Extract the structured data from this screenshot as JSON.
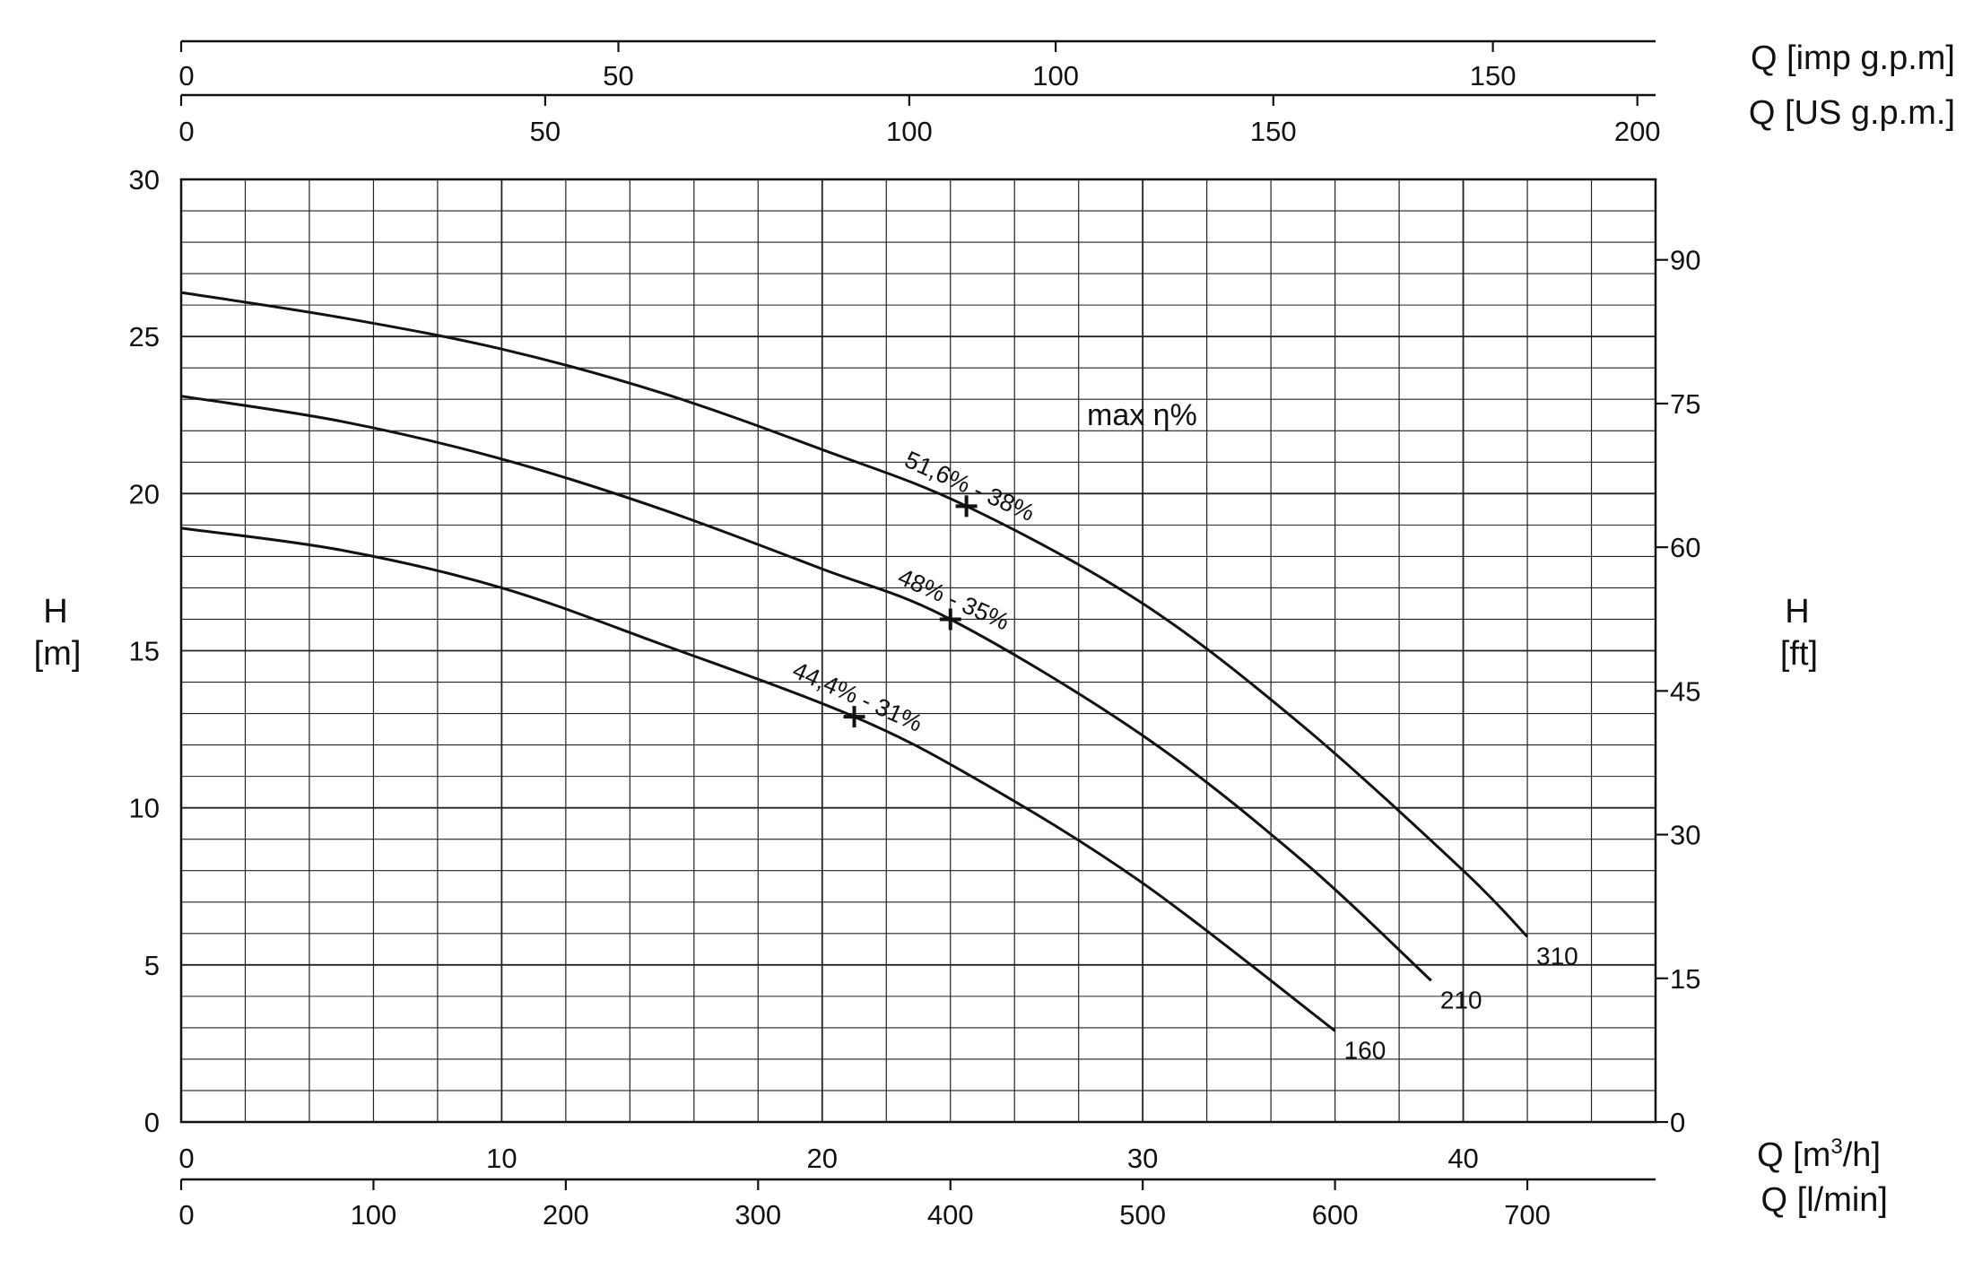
{
  "chart_data": {
    "type": "line",
    "title": "",
    "grid": true,
    "x_primary": {
      "label": "Q [m³/h]",
      "label_main": "Q [m",
      "label_sup": "3",
      "label_end": "/h]",
      "range": [
        0,
        46
      ],
      "ticks": [
        0,
        10,
        20,
        30,
        40
      ],
      "minor_step": 2
    },
    "x_secondary_bottom": {
      "label": "Q [l/min]",
      "range": [
        0,
        766.67
      ],
      "ticks": [
        0,
        100,
        200,
        300,
        400,
        500,
        600,
        700
      ]
    },
    "x_top_us": {
      "label": "Q [US g.p.m.]",
      "range": [
        0,
        202.5
      ],
      "ticks": [
        0,
        50,
        100,
        150,
        200
      ]
    },
    "x_top_imp": {
      "label": "Q [imp g.p.m]",
      "range": [
        0,
        168.6
      ],
      "ticks": [
        0,
        50,
        100,
        150
      ]
    },
    "y_primary": {
      "label_line1": "H",
      "label_line2": "[m]",
      "range": [
        0,
        30
      ],
      "ticks": [
        0,
        5,
        10,
        15,
        20,
        25,
        30
      ],
      "minor_step": 1
    },
    "y_secondary": {
      "label_line1": "H",
      "label_line2": "[ft]",
      "range": [
        0,
        98.4
      ],
      "ticks": [
        0,
        15,
        30,
        45,
        60,
        75,
        90
      ]
    },
    "annotation": "max η%",
    "series": [
      {
        "name": "310",
        "x": [
          0,
          5,
          10,
          15,
          20,
          24.5,
          30,
          35,
          40,
          42
        ],
        "y": [
          26.4,
          25.6,
          24.6,
          23.2,
          21.4,
          19.6,
          16.5,
          12.6,
          8.0,
          5.9
        ],
        "bep": {
          "x": 24.5,
          "y": 19.6,
          "label": "51,6% - 38%"
        }
      },
      {
        "name": "210",
        "x": [
          0,
          5,
          10,
          15,
          20,
          24,
          30,
          35,
          39
        ],
        "y": [
          23.1,
          22.3,
          21.1,
          19.5,
          17.6,
          16.0,
          12.3,
          8.3,
          4.5
        ],
        "bep": {
          "x": 24,
          "y": 16.0,
          "label": "48% - 35%"
        }
      },
      {
        "name": "160",
        "x": [
          0,
          5,
          10,
          15,
          21,
          25,
          30,
          36
        ],
        "y": [
          18.9,
          18.2,
          17.0,
          15.2,
          12.9,
          10.8,
          7.6,
          2.9
        ],
        "bep": {
          "x": 21,
          "y": 12.9,
          "label": "44,4% - 31%"
        }
      }
    ]
  }
}
